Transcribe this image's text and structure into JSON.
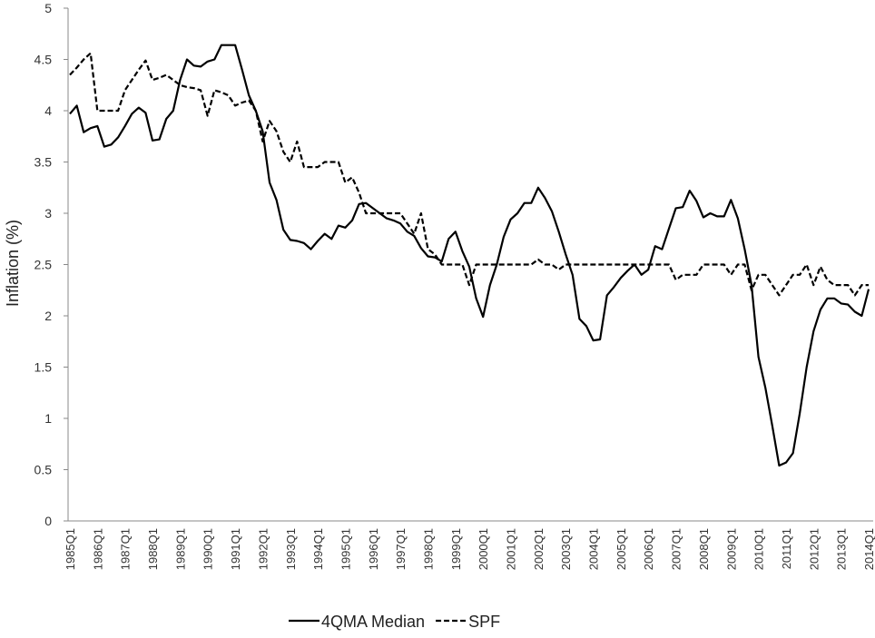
{
  "chart_data": {
    "type": "line",
    "y_label": "Inflation (%)",
    "categories": [
      "1985Q1",
      null,
      null,
      null,
      "1986Q1",
      null,
      null,
      null,
      "1987Q1",
      null,
      null,
      null,
      "1988Q1",
      null,
      null,
      null,
      "1989Q1",
      null,
      null,
      null,
      "1990Q1",
      null,
      null,
      null,
      "1991Q1",
      null,
      null,
      null,
      "1992Q1",
      null,
      null,
      null,
      "1993Q1",
      null,
      null,
      null,
      "1994Q1",
      null,
      null,
      null,
      "1995Q1",
      null,
      null,
      null,
      "1996Q1",
      null,
      null,
      null,
      "1997Q1",
      null,
      null,
      null,
      "1998Q1",
      null,
      null,
      null,
      "1999Q1",
      null,
      null,
      null,
      "2000Q1",
      null,
      null,
      null,
      "2001Q1",
      null,
      null,
      null,
      "2002Q1",
      null,
      null,
      null,
      "2003Q1",
      null,
      null,
      null,
      "2004Q1",
      null,
      null,
      null,
      "2005Q1",
      null,
      null,
      null,
      "2006Q1",
      null,
      null,
      null,
      "2007Q1",
      null,
      null,
      null,
      "2008Q1",
      null,
      null,
      null,
      "2009Q1",
      null,
      null,
      null,
      "2010Q1",
      null,
      null,
      null,
      "2011Q1",
      null,
      null,
      null,
      "2012Q1",
      null,
      null,
      null,
      "2013Q1",
      null,
      null,
      null,
      "2014Q1"
    ],
    "series": [
      {
        "name": "4QMA Median",
        "color": "#000000",
        "dash": false,
        "values": [
          3.97,
          4.05,
          3.79,
          3.83,
          3.85,
          3.65,
          3.67,
          3.74,
          3.85,
          3.97,
          4.03,
          3.98,
          3.71,
          3.72,
          3.92,
          4.0,
          4.3,
          4.5,
          4.44,
          4.43,
          4.48,
          4.5,
          4.64,
          4.64,
          4.64,
          4.4,
          4.15,
          4.0,
          3.8,
          3.3,
          3.13,
          2.84,
          2.74,
          2.73,
          2.71,
          2.65,
          2.73,
          2.8,
          2.75,
          2.88,
          2.86,
          2.93,
          3.09,
          3.1,
          3.05,
          3.0,
          2.95,
          2.93,
          2.9,
          2.82,
          2.78,
          2.66,
          2.58,
          2.57,
          2.53,
          2.75,
          2.82,
          2.63,
          2.48,
          2.17,
          1.99,
          2.3,
          2.5,
          2.77,
          2.94,
          3.0,
          3.1,
          3.1,
          3.25,
          3.15,
          3.02,
          2.82,
          2.6,
          2.4,
          1.97,
          1.9,
          1.76,
          1.77,
          2.2,
          2.28,
          2.37,
          2.44,
          2.5,
          2.4,
          2.45,
          2.68,
          2.65,
          2.85,
          3.05,
          3.06,
          3.22,
          3.12,
          2.96,
          3.0,
          2.97,
          2.97,
          3.13,
          2.95,
          2.65,
          2.3,
          1.6,
          1.3,
          0.93,
          0.54,
          0.57,
          0.66,
          1.05,
          1.5,
          1.85,
          2.06,
          2.17,
          2.17,
          2.12,
          2.11,
          2.04,
          2.0,
          2.26
        ]
      },
      {
        "name": "SPF",
        "color": "#000000",
        "dash": true,
        "values": [
          4.35,
          4.42,
          4.5,
          4.56,
          4.0,
          4.0,
          4.0,
          4.0,
          4.2,
          4.3,
          4.4,
          4.49,
          4.3,
          4.32,
          4.35,
          4.3,
          4.25,
          4.23,
          4.22,
          4.2,
          3.95,
          4.2,
          4.18,
          4.15,
          4.05,
          4.08,
          4.1,
          4.0,
          3.7,
          3.9,
          3.8,
          3.6,
          3.5,
          3.7,
          3.45,
          3.45,
          3.45,
          3.5,
          3.5,
          3.5,
          3.3,
          3.35,
          3.2,
          3.0,
          3.0,
          3.0,
          3.0,
          3.0,
          3.0,
          2.9,
          2.8,
          3.0,
          2.65,
          2.6,
          2.5,
          2.5,
          2.5,
          2.5,
          2.3,
          2.5,
          2.5,
          2.5,
          2.5,
          2.5,
          2.5,
          2.5,
          2.5,
          2.5,
          2.55,
          2.5,
          2.5,
          2.45,
          2.5,
          2.5,
          2.5,
          2.5,
          2.5,
          2.5,
          2.5,
          2.5,
          2.5,
          2.5,
          2.5,
          2.5,
          2.5,
          2.5,
          2.5,
          2.5,
          2.35,
          2.4,
          2.4,
          2.4,
          2.5,
          2.5,
          2.5,
          2.5,
          2.4,
          2.5,
          2.5,
          2.25,
          2.4,
          2.4,
          2.3,
          2.2,
          2.3,
          2.4,
          2.4,
          2.5,
          2.3,
          2.48,
          2.35,
          2.3,
          2.3,
          2.3,
          2.2,
          2.3,
          2.3
        ]
      }
    ],
    "ylim": [
      0,
      5
    ],
    "yticks": [
      0,
      0.5,
      1,
      1.5,
      2,
      2.5,
      3,
      3.5,
      4,
      4.5,
      5
    ],
    "grid": false,
    "legend": "bottom"
  }
}
